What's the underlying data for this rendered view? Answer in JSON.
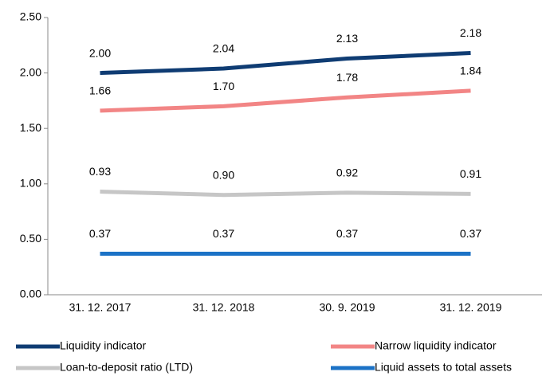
{
  "chart_data": {
    "type": "line",
    "categories": [
      "31. 12. 2017",
      "31. 12. 2018",
      "30. 9. 2019",
      "31. 12. 2019"
    ],
    "series": [
      {
        "name": "Liquidity indicator",
        "color": "#0f3c73",
        "values": [
          2.0,
          2.04,
          2.13,
          2.18
        ],
        "value_labels": [
          "2.00",
          "2.04",
          "2.13",
          "2.18"
        ]
      },
      {
        "name": "Narrow liquidity indicator",
        "color": "#f28585",
        "values": [
          1.66,
          1.7,
          1.78,
          1.84
        ],
        "value_labels": [
          "1.66",
          "1.70",
          "1.78",
          "1.84"
        ]
      },
      {
        "name": "Loan-to-deposit ratio (LTD)",
        "color": "#c6c6c6",
        "values": [
          0.93,
          0.9,
          0.92,
          0.91
        ],
        "value_labels": [
          "0.93",
          "0.90",
          "0.92",
          "0.91"
        ]
      },
      {
        "name": "Liquid assets to total assets",
        "color": "#1b72c6",
        "values": [
          0.37,
          0.37,
          0.37,
          0.37
        ],
        "value_labels": [
          "0.37",
          "0.37",
          "0.37",
          "0.37"
        ]
      }
    ],
    "ylim": [
      0,
      2.5
    ],
    "yticks": [
      {
        "value": 0,
        "label": "0.00"
      },
      {
        "value": 0.5,
        "label": "0.50"
      },
      {
        "value": 1,
        "label": "1.00"
      },
      {
        "value": 1.5,
        "label": "1.50"
      },
      {
        "value": 2,
        "label": "2.00"
      },
      {
        "value": 2.5,
        "label": "2.50"
      }
    ]
  }
}
